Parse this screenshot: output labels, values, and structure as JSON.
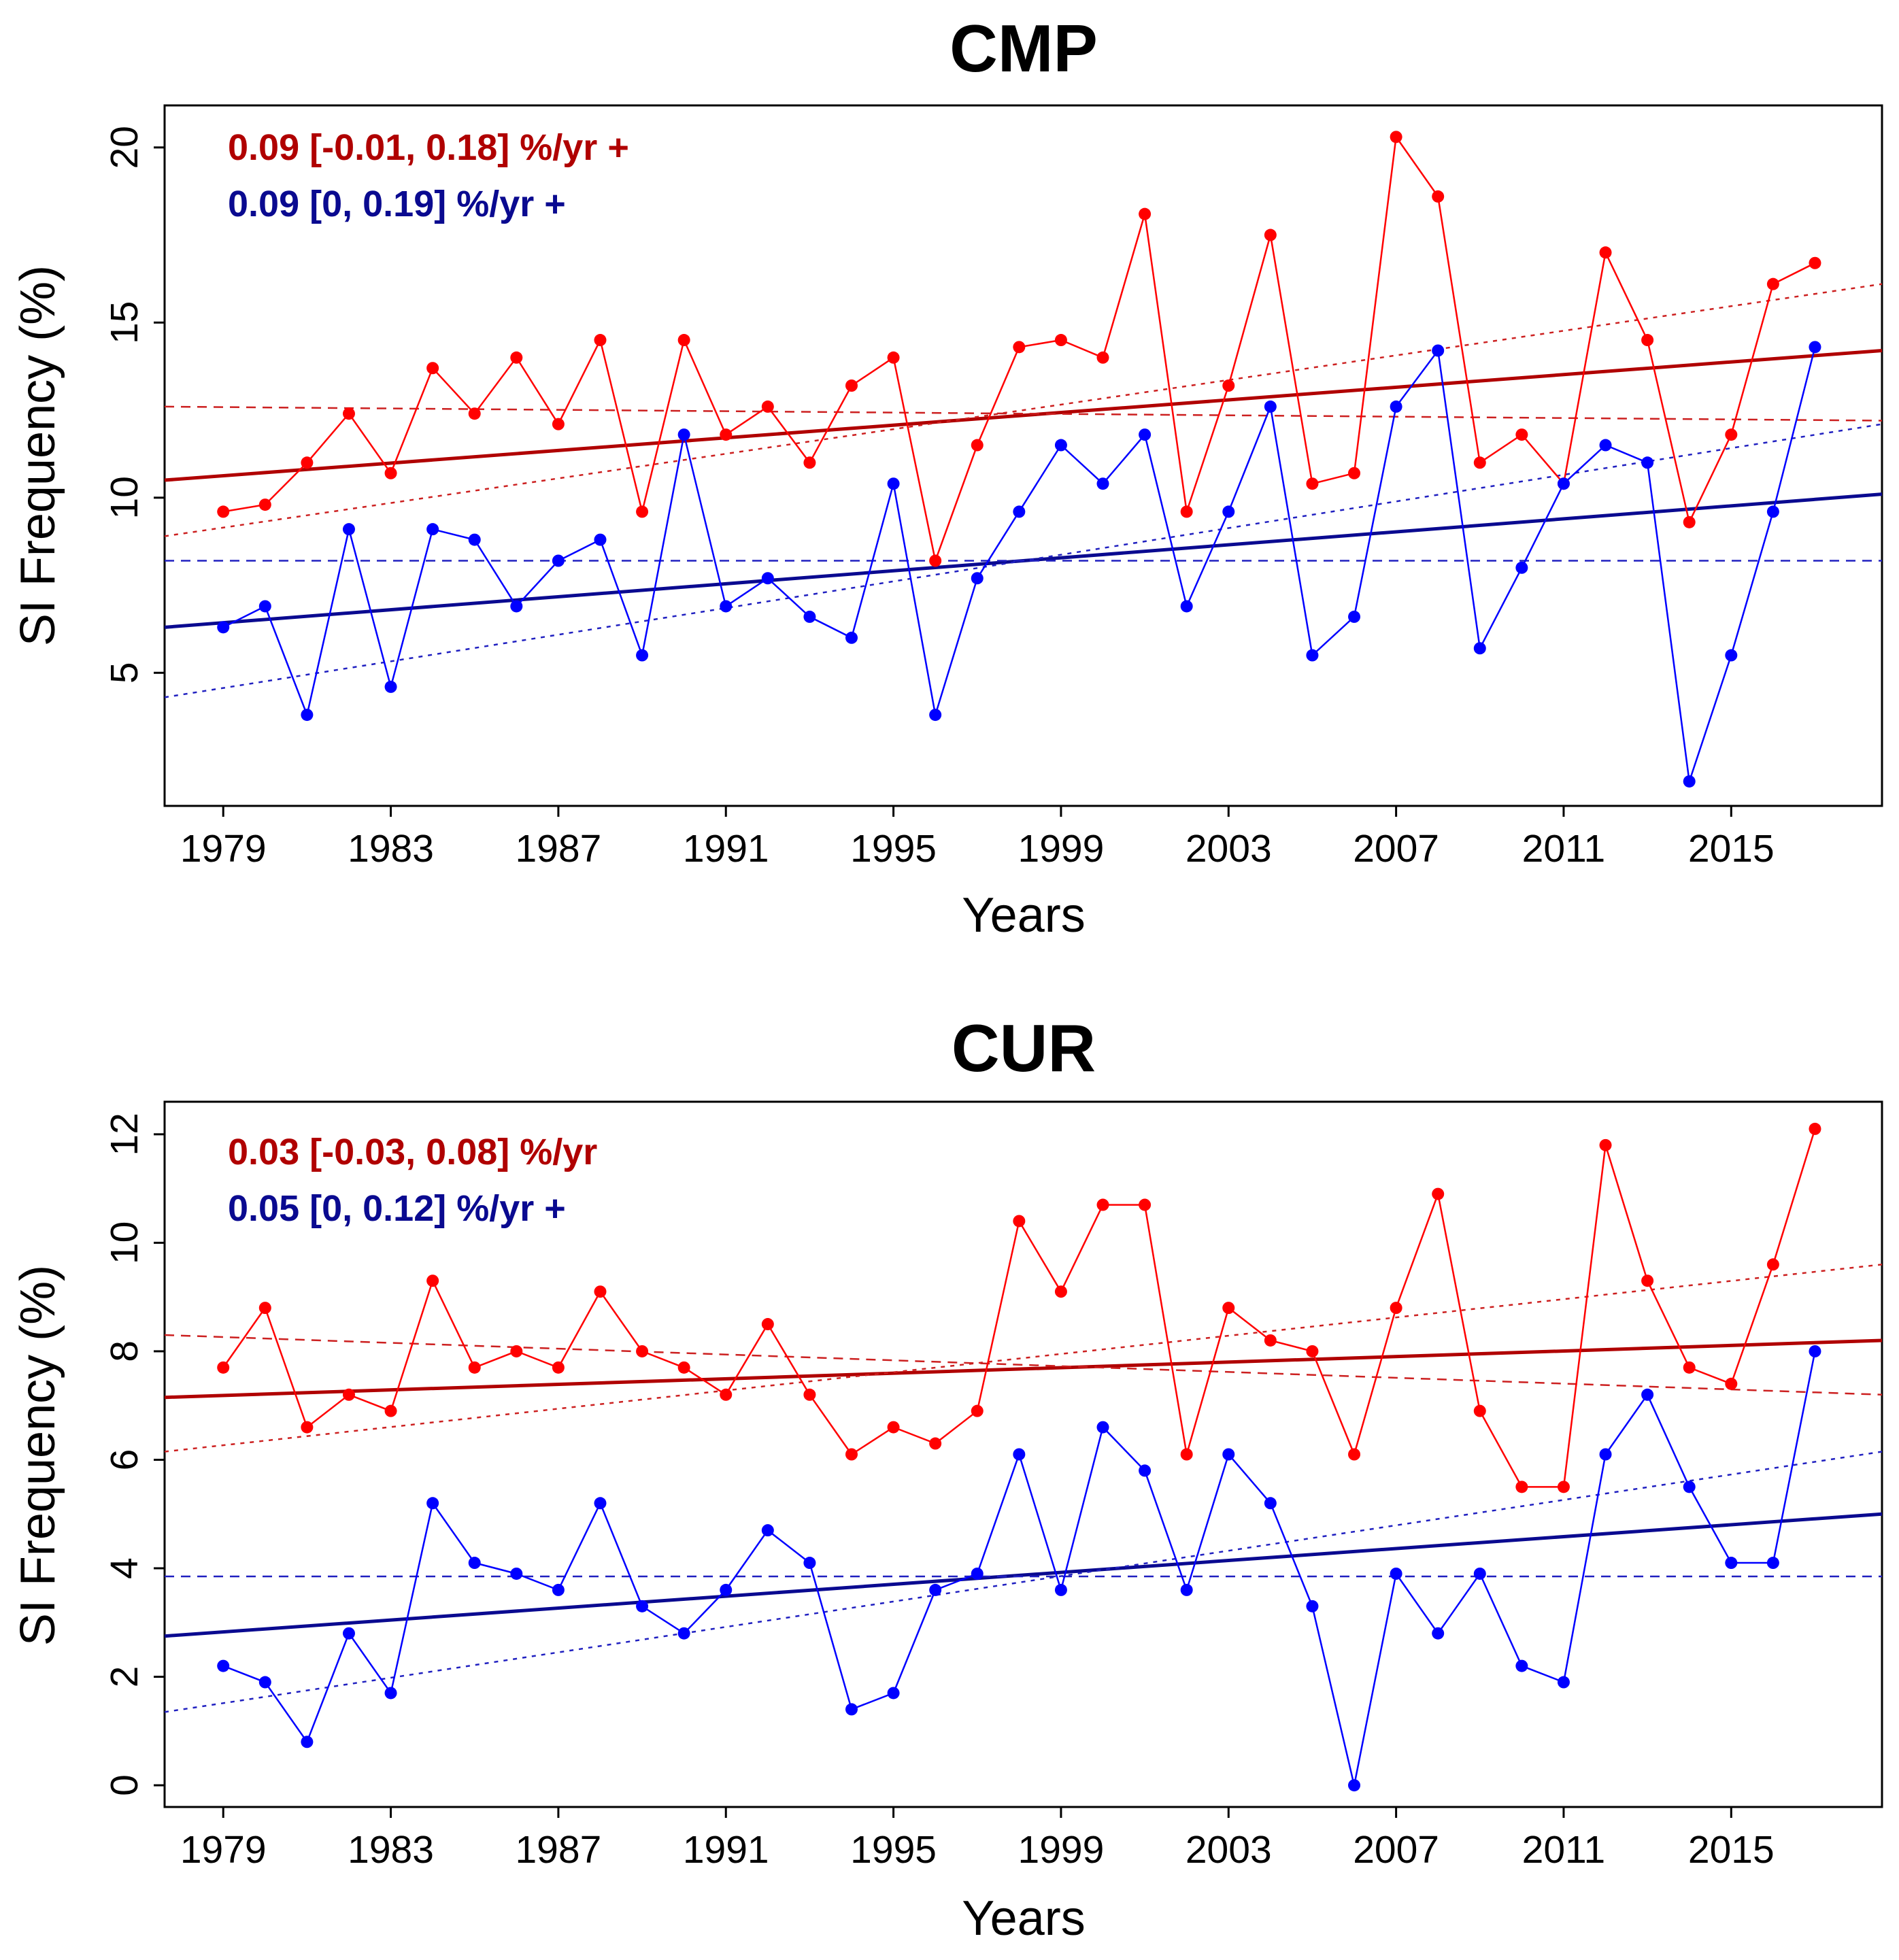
{
  "chart_data": [
    {
      "type": "line",
      "title": "CMP",
      "xlabel": "Years",
      "ylabel": "SI Frequency (%)",
      "xlim": [
        1977.6,
        2018.6
      ],
      "ylim": [
        1.2,
        21.2
      ],
      "x_ticks": [
        "1979",
        "1983",
        "1987",
        "1991",
        "1995",
        "1999",
        "2003",
        "2007",
        "2011",
        "2015"
      ],
      "y_ticks": [
        "5",
        "10",
        "15",
        "20"
      ],
      "x": [
        1979,
        1980,
        1981,
        1982,
        1983,
        1984,
        1985,
        1986,
        1987,
        1988,
        1989,
        1990,
        1991,
        1992,
        1993,
        1994,
        1995,
        1996,
        1997,
        1998,
        1999,
        2000,
        2001,
        2002,
        2003,
        2004,
        2005,
        2006,
        2007,
        2008,
        2009,
        2010,
        2011,
        2012,
        2013,
        2014,
        2015,
        2016,
        2017
      ],
      "series": [
        {
          "name": "red",
          "color": "#ff0000",
          "values": [
            9.6,
            9.8,
            11.0,
            12.4,
            10.7,
            13.7,
            12.4,
            14.0,
            12.1,
            14.5,
            9.6,
            14.5,
            11.8,
            12.6,
            11.0,
            13.2,
            14.0,
            8.2,
            11.5,
            14.3,
            14.5,
            14.0,
            18.1,
            9.6,
            13.2,
            17.5,
            10.4,
            10.7,
            20.3,
            18.6,
            11.0,
            11.8,
            10.4,
            17.0,
            14.5,
            9.3,
            11.8,
            16.1,
            16.7
          ]
        },
        {
          "name": "blue",
          "color": "#0000ff",
          "values": [
            6.3,
            6.9,
            3.8,
            9.1,
            4.6,
            9.1,
            8.8,
            6.9,
            8.2,
            8.8,
            5.5,
            11.8,
            6.9,
            7.7,
            6.6,
            6.0,
            10.4,
            3.8,
            7.7,
            9.6,
            11.5,
            10.4,
            11.8,
            6.9,
            9.6,
            12.6,
            5.5,
            6.6,
            12.6,
            14.2,
            5.7,
            8.0,
            10.4,
            11.5,
            11.0,
            1.9,
            5.5,
            9.6,
            14.3
          ]
        }
      ],
      "trend_lines": [
        {
          "name": "red-trend",
          "color": "#b00000",
          "style": "solid",
          "y_start": 10.5,
          "y_end": 14.2
        },
        {
          "name": "red-upper-bound",
          "color": "#cc2020",
          "style": "dotted",
          "y_start": 8.9,
          "y_end": 16.1
        },
        {
          "name": "red-lower-bound",
          "color": "#cc2020",
          "style": "dashed",
          "y_start": 12.6,
          "y_end": 12.2
        },
        {
          "name": "blue-trend",
          "color": "#0a0a90",
          "style": "solid",
          "y_start": 6.3,
          "y_end": 10.1
        },
        {
          "name": "blue-upper-bound",
          "color": "#2020c0",
          "style": "dotted",
          "y_start": 4.3,
          "y_end": 12.1
        },
        {
          "name": "blue-lower-bound",
          "color": "#2020c0",
          "style": "dashed",
          "y_start": 8.2,
          "y_end": 8.2
        }
      ],
      "annotations": [
        {
          "text": "0.09 [-0.01, 0.18] %/yr +",
          "color": "#b00000"
        },
        {
          "text": "0.09 [0, 0.19] %/yr +",
          "color": "#0a0a90"
        }
      ]
    },
    {
      "type": "line",
      "title": "CUR",
      "xlabel": "Years",
      "ylabel": "SI Frequency (%)",
      "xlim": [
        1977.6,
        2018.6
      ],
      "ylim": [
        -0.4,
        12.6
      ],
      "x_ticks": [
        "1979",
        "1983",
        "1987",
        "1991",
        "1995",
        "1999",
        "2003",
        "2007",
        "2011",
        "2015"
      ],
      "y_ticks": [
        "0",
        "2",
        "4",
        "6",
        "8",
        "10",
        "12"
      ],
      "x": [
        1979,
        1980,
        1981,
        1982,
        1983,
        1984,
        1985,
        1986,
        1987,
        1988,
        1989,
        1990,
        1991,
        1992,
        1993,
        1994,
        1995,
        1996,
        1997,
        1998,
        1999,
        2000,
        2001,
        2002,
        2003,
        2004,
        2005,
        2006,
        2007,
        2008,
        2009,
        2010,
        2011,
        2012,
        2013,
        2014,
        2015,
        2016,
        2017
      ],
      "series": [
        {
          "name": "red",
          "color": "#ff0000",
          "values": [
            7.7,
            8.8,
            6.6,
            7.2,
            6.9,
            9.3,
            7.7,
            8.0,
            7.7,
            9.1,
            8.0,
            7.7,
            7.2,
            8.5,
            7.2,
            6.1,
            6.6,
            6.3,
            6.9,
            10.4,
            9.1,
            10.7,
            10.7,
            6.1,
            8.8,
            8.2,
            8.0,
            6.1,
            8.8,
            10.9,
            6.9,
            5.5,
            5.5,
            11.8,
            9.3,
            7.7,
            7.4,
            9.6,
            12.1
          ]
        },
        {
          "name": "blue",
          "color": "#0000ff",
          "values": [
            2.2,
            1.9,
            0.8,
            2.8,
            1.7,
            5.2,
            4.1,
            3.9,
            3.6,
            5.2,
            3.3,
            2.8,
            3.6,
            4.7,
            4.1,
            1.4,
            1.7,
            3.6,
            3.9,
            6.1,
            3.6,
            6.6,
            5.8,
            3.6,
            6.1,
            5.2,
            3.3,
            0.0,
            3.9,
            2.8,
            3.9,
            2.2,
            1.9,
            6.1,
            7.2,
            5.5,
            4.1,
            4.1,
            8.0
          ]
        }
      ],
      "trend_lines": [
        {
          "name": "red-trend",
          "color": "#b00000",
          "style": "solid",
          "y_start": 7.15,
          "y_end": 8.2
        },
        {
          "name": "red-upper-bound",
          "color": "#cc2020",
          "style": "dotted",
          "y_start": 6.15,
          "y_end": 9.6
        },
        {
          "name": "red-lower-bound",
          "color": "#cc2020",
          "style": "dashed",
          "y_start": 8.3,
          "y_end": 7.2
        },
        {
          "name": "blue-trend",
          "color": "#0a0a90",
          "style": "solid",
          "y_start": 2.75,
          "y_end": 5.0
        },
        {
          "name": "blue-upper-bound",
          "color": "#2020c0",
          "style": "dotted",
          "y_start": 1.35,
          "y_end": 6.15
        },
        {
          "name": "blue-lower-bound",
          "color": "#2020c0",
          "style": "dashed",
          "y_start": 3.85,
          "y_end": 3.85
        }
      ],
      "annotations": [
        {
          "text": "0.03 [-0.03, 0.08] %/yr",
          "color": "#b00000"
        },
        {
          "text": "0.05 [0, 0.12] %/yr +",
          "color": "#0a0a90"
        }
      ]
    }
  ]
}
